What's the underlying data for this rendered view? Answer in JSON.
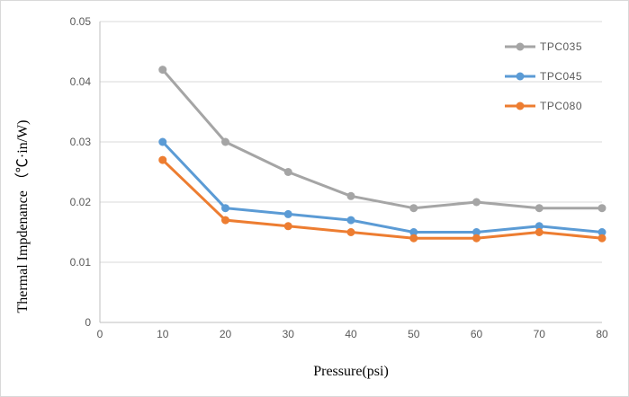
{
  "figure": {
    "xlabel": "Pressure(psi)",
    "ylabel": "Thermal Impdenance （℃·in/W)"
  },
  "colors": {
    "background": "#ffffff",
    "figure_border": "#d9d9d9",
    "gridline": "#d9d9d9",
    "axis_line": "#bfbfbf",
    "tick_text": "#595959",
    "axis_title_text": "#000000",
    "legend_text": "#595959"
  },
  "chart_data": {
    "type": "line",
    "title": "",
    "xlabel": "Pressure(psi)",
    "ylabel": "Thermal Impdenance （℃·in/W)",
    "x": [
      10,
      20,
      30,
      40,
      50,
      60,
      70,
      80
    ],
    "series": [
      {
        "name": "TPC035",
        "color": "#a5a5a5",
        "values": [
          0.042,
          0.03,
          0.025,
          0.021,
          0.019,
          0.02,
          0.019,
          0.019
        ]
      },
      {
        "name": "TPC045",
        "color": "#5b9bd5",
        "values": [
          0.03,
          0.019,
          0.018,
          0.017,
          0.015,
          0.015,
          0.016,
          0.015
        ]
      },
      {
        "name": "TPC080",
        "color": "#ed7d31",
        "values": [
          0.027,
          0.017,
          0.016,
          0.015,
          0.014,
          0.014,
          0.015,
          0.014
        ]
      }
    ],
    "xlim": [
      0,
      80
    ],
    "ylim": [
      0,
      0.05
    ],
    "x_ticks": [
      0,
      10,
      20,
      30,
      40,
      50,
      60,
      70,
      80
    ],
    "x_tick_labels": [
      "0",
      "10",
      "20",
      "30",
      "40",
      "50",
      "60",
      "70",
      "80"
    ],
    "y_ticks": [
      0,
      0.01,
      0.02,
      0.03,
      0.04,
      0.05
    ],
    "y_tick_labels": [
      "0",
      "0.01",
      "0.02",
      "0.03",
      "0.04",
      "0.05"
    ],
    "grid": true,
    "marker": "circle",
    "legend_position": "top-right",
    "legend": [
      "TPC035",
      "TPC045",
      "TPC080"
    ]
  }
}
